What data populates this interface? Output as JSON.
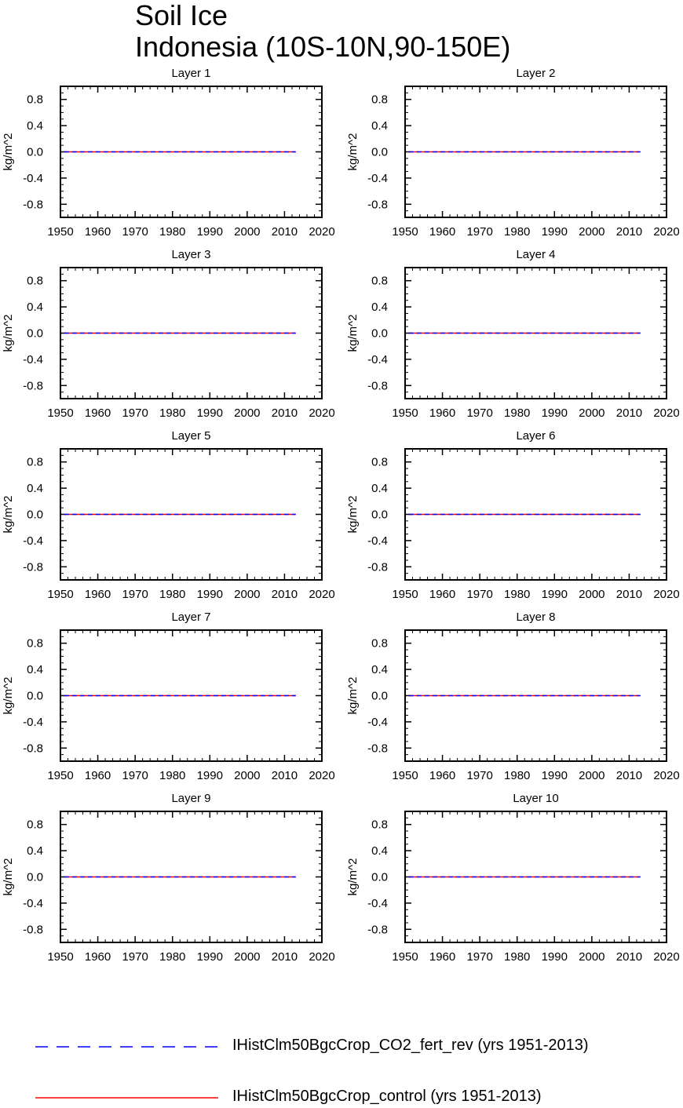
{
  "figure": {
    "title_line1": "Soil Ice",
    "title_line2": "Indonesia (10S-10N,90-150E)"
  },
  "chart_data": [
    {
      "type": "line",
      "title": "Layer 1",
      "ylabel": "kg/m^2",
      "xlim": [
        1950,
        2020
      ],
      "ylim": [
        -1,
        1
      ],
      "xticks": [
        1950,
        1960,
        1970,
        1980,
        1990,
        2000,
        2010,
        2020
      ],
      "yticks": [
        0.8,
        0.4,
        0.0,
        -0.4,
        -0.8
      ],
      "xtick_labels": [
        "1950",
        "1960",
        "1970",
        "1980",
        "1990",
        "2000",
        "2010",
        "2020"
      ],
      "ytick_labels": [
        "0.8",
        "0.4",
        "0.0",
        "-0.4",
        "-0.8"
      ],
      "series": [
        {
          "name": "IHistClm50BgcCrop_CO2_fert_rev (yrs 1951-2013)",
          "x": [
            1951,
            2013
          ],
          "values": [
            0,
            0
          ]
        },
        {
          "name": "IHistClm50BgcCrop_control (yrs 1951-2013)",
          "x": [
            1951,
            2013
          ],
          "values": [
            0,
            0
          ]
        }
      ]
    },
    {
      "type": "line",
      "title": "Layer 2",
      "ylabel": "kg/m^2",
      "xlim": [
        1950,
        2020
      ],
      "ylim": [
        -1,
        1
      ],
      "xticks": [
        1950,
        1960,
        1970,
        1980,
        1990,
        2000,
        2010,
        2020
      ],
      "yticks": [
        0.8,
        0.4,
        0.0,
        -0.4,
        -0.8
      ],
      "xtick_labels": [
        "1950",
        "1960",
        "1970",
        "1980",
        "1990",
        "2000",
        "2010",
        "2020"
      ],
      "ytick_labels": [
        "0.8",
        "0.4",
        "0.0",
        "-0.4",
        "-0.8"
      ],
      "series": [
        {
          "name": "IHistClm50BgcCrop_CO2_fert_rev (yrs 1951-2013)",
          "x": [
            1951,
            2013
          ],
          "values": [
            0,
            0
          ]
        },
        {
          "name": "IHistClm50BgcCrop_control (yrs 1951-2013)",
          "x": [
            1951,
            2013
          ],
          "values": [
            0,
            0
          ]
        }
      ]
    },
    {
      "type": "line",
      "title": "Layer 3",
      "ylabel": "kg/m^2",
      "xlim": [
        1950,
        2020
      ],
      "ylim": [
        -1,
        1
      ],
      "xticks": [
        1950,
        1960,
        1970,
        1980,
        1990,
        2000,
        2010,
        2020
      ],
      "yticks": [
        0.8,
        0.4,
        0.0,
        -0.4,
        -0.8
      ],
      "xtick_labels": [
        "1950",
        "1960",
        "1970",
        "1980",
        "1990",
        "2000",
        "2010",
        "2020"
      ],
      "ytick_labels": [
        "0.8",
        "0.4",
        "0.0",
        "-0.4",
        "-0.8"
      ],
      "series": [
        {
          "name": "IHistClm50BgcCrop_CO2_fert_rev (yrs 1951-2013)",
          "x": [
            1951,
            2013
          ],
          "values": [
            0,
            0
          ]
        },
        {
          "name": "IHistClm50BgcCrop_control (yrs 1951-2013)",
          "x": [
            1951,
            2013
          ],
          "values": [
            0,
            0
          ]
        }
      ]
    },
    {
      "type": "line",
      "title": "Layer 4",
      "ylabel": "kg/m^2",
      "xlim": [
        1950,
        2020
      ],
      "ylim": [
        -1,
        1
      ],
      "xticks": [
        1950,
        1960,
        1970,
        1980,
        1990,
        2000,
        2010,
        2020
      ],
      "yticks": [
        0.8,
        0.4,
        0.0,
        -0.4,
        -0.8
      ],
      "xtick_labels": [
        "1950",
        "1960",
        "1970",
        "1980",
        "1990",
        "2000",
        "2010",
        "2020"
      ],
      "ytick_labels": [
        "0.8",
        "0.4",
        "0.0",
        "-0.4",
        "-0.8"
      ],
      "series": [
        {
          "name": "IHistClm50BgcCrop_CO2_fert_rev (yrs 1951-2013)",
          "x": [
            1951,
            2013
          ],
          "values": [
            0,
            0
          ]
        },
        {
          "name": "IHistClm50BgcCrop_control (yrs 1951-2013)",
          "x": [
            1951,
            2013
          ],
          "values": [
            0,
            0
          ]
        }
      ]
    },
    {
      "type": "line",
      "title": "Layer 5",
      "ylabel": "kg/m^2",
      "xlim": [
        1950,
        2020
      ],
      "ylim": [
        -1,
        1
      ],
      "xticks": [
        1950,
        1960,
        1970,
        1980,
        1990,
        2000,
        2010,
        2020
      ],
      "yticks": [
        0.8,
        0.4,
        0.0,
        -0.4,
        -0.8
      ],
      "xtick_labels": [
        "1950",
        "1960",
        "1970",
        "1980",
        "1990",
        "2000",
        "2010",
        "2020"
      ],
      "ytick_labels": [
        "0.8",
        "0.4",
        "0.0",
        "-0.4",
        "-0.8"
      ],
      "series": [
        {
          "name": "IHistClm50BgcCrop_CO2_fert_rev (yrs 1951-2013)",
          "x": [
            1951,
            2013
          ],
          "values": [
            0,
            0
          ]
        },
        {
          "name": "IHistClm50BgcCrop_control (yrs 1951-2013)",
          "x": [
            1951,
            2013
          ],
          "values": [
            0,
            0
          ]
        }
      ]
    },
    {
      "type": "line",
      "title": "Layer 6",
      "ylabel": "kg/m^2",
      "xlim": [
        1950,
        2020
      ],
      "ylim": [
        -1,
        1
      ],
      "xticks": [
        1950,
        1960,
        1970,
        1980,
        1990,
        2000,
        2010,
        2020
      ],
      "yticks": [
        0.8,
        0.4,
        0.0,
        -0.4,
        -0.8
      ],
      "xtick_labels": [
        "1950",
        "1960",
        "1970",
        "1980",
        "1990",
        "2000",
        "2010",
        "2020"
      ],
      "ytick_labels": [
        "0.8",
        "0.4",
        "0.0",
        "-0.4",
        "-0.8"
      ],
      "series": [
        {
          "name": "IHistClm50BgcCrop_CO2_fert_rev (yrs 1951-2013)",
          "x": [
            1951,
            2013
          ],
          "values": [
            0,
            0
          ]
        },
        {
          "name": "IHistClm50BgcCrop_control (yrs 1951-2013)",
          "x": [
            1951,
            2013
          ],
          "values": [
            0,
            0
          ]
        }
      ]
    },
    {
      "type": "line",
      "title": "Layer 7",
      "ylabel": "kg/m^2",
      "xlim": [
        1950,
        2020
      ],
      "ylim": [
        -1,
        1
      ],
      "xticks": [
        1950,
        1960,
        1970,
        1980,
        1990,
        2000,
        2010,
        2020
      ],
      "yticks": [
        0.8,
        0.4,
        0.0,
        -0.4,
        -0.8
      ],
      "xtick_labels": [
        "1950",
        "1960",
        "1970",
        "1980",
        "1990",
        "2000",
        "2010",
        "2020"
      ],
      "ytick_labels": [
        "0.8",
        "0.4",
        "0.0",
        "-0.4",
        "-0.8"
      ],
      "series": [
        {
          "name": "IHistClm50BgcCrop_CO2_fert_rev (yrs 1951-2013)",
          "x": [
            1951,
            2013
          ],
          "values": [
            0,
            0
          ]
        },
        {
          "name": "IHistClm50BgcCrop_control (yrs 1951-2013)",
          "x": [
            1951,
            2013
          ],
          "values": [
            0,
            0
          ]
        }
      ]
    },
    {
      "type": "line",
      "title": "Layer 8",
      "ylabel": "kg/m^2",
      "xlim": [
        1950,
        2020
      ],
      "ylim": [
        -1,
        1
      ],
      "xticks": [
        1950,
        1960,
        1970,
        1980,
        1990,
        2000,
        2010,
        2020
      ],
      "yticks": [
        0.8,
        0.4,
        0.0,
        -0.4,
        -0.8
      ],
      "xtick_labels": [
        "1950",
        "1960",
        "1970",
        "1980",
        "1990",
        "2000",
        "2010",
        "2020"
      ],
      "ytick_labels": [
        "0.8",
        "0.4",
        "0.0",
        "-0.4",
        "-0.8"
      ],
      "series": [
        {
          "name": "IHistClm50BgcCrop_CO2_fert_rev (yrs 1951-2013)",
          "x": [
            1951,
            2013
          ],
          "values": [
            0,
            0
          ]
        },
        {
          "name": "IHistClm50BgcCrop_control (yrs 1951-2013)",
          "x": [
            1951,
            2013
          ],
          "values": [
            0,
            0
          ]
        }
      ]
    },
    {
      "type": "line",
      "title": "Layer 9",
      "ylabel": "kg/m^2",
      "xlim": [
        1950,
        2020
      ],
      "ylim": [
        -1,
        1
      ],
      "xticks": [
        1950,
        1960,
        1970,
        1980,
        1990,
        2000,
        2010,
        2020
      ],
      "yticks": [
        0.8,
        0.4,
        0.0,
        -0.4,
        -0.8
      ],
      "xtick_labels": [
        "1950",
        "1960",
        "1970",
        "1980",
        "1990",
        "2000",
        "2010",
        "2020"
      ],
      "ytick_labels": [
        "0.8",
        "0.4",
        "0.0",
        "-0.4",
        "-0.8"
      ],
      "series": [
        {
          "name": "IHistClm50BgcCrop_CO2_fert_rev (yrs 1951-2013)",
          "x": [
            1951,
            2013
          ],
          "values": [
            0,
            0
          ]
        },
        {
          "name": "IHistClm50BgcCrop_control (yrs 1951-2013)",
          "x": [
            1951,
            2013
          ],
          "values": [
            0,
            0
          ]
        }
      ]
    },
    {
      "type": "line",
      "title": "Layer 10",
      "ylabel": "kg/m^2",
      "xlim": [
        1950,
        2020
      ],
      "ylim": [
        -1,
        1
      ],
      "xticks": [
        1950,
        1960,
        1970,
        1980,
        1990,
        2000,
        2010,
        2020
      ],
      "yticks": [
        0.8,
        0.4,
        0.0,
        -0.4,
        -0.8
      ],
      "xtick_labels": [
        "1950",
        "1960",
        "1970",
        "1980",
        "1990",
        "2000",
        "2010",
        "2020"
      ],
      "ytick_labels": [
        "0.8",
        "0.4",
        "0.0",
        "-0.4",
        "-0.8"
      ],
      "series": [
        {
          "name": "IHistClm50BgcCrop_CO2_fert_rev (yrs 1951-2013)",
          "x": [
            1951,
            2013
          ],
          "values": [
            0,
            0
          ]
        },
        {
          "name": "IHistClm50BgcCrop_control (yrs 1951-2013)",
          "x": [
            1951,
            2013
          ],
          "values": [
            0,
            0
          ]
        }
      ]
    }
  ],
  "legend": {
    "items": [
      {
        "label": "IHistClm50BgcCrop_CO2_fert_rev (yrs 1951-2013)",
        "color": "#0000ff",
        "style": "dashed"
      },
      {
        "label": "IHistClm50BgcCrop_control (yrs 1951-2013)",
        "color": "#ff0000",
        "style": "solid"
      }
    ]
  }
}
